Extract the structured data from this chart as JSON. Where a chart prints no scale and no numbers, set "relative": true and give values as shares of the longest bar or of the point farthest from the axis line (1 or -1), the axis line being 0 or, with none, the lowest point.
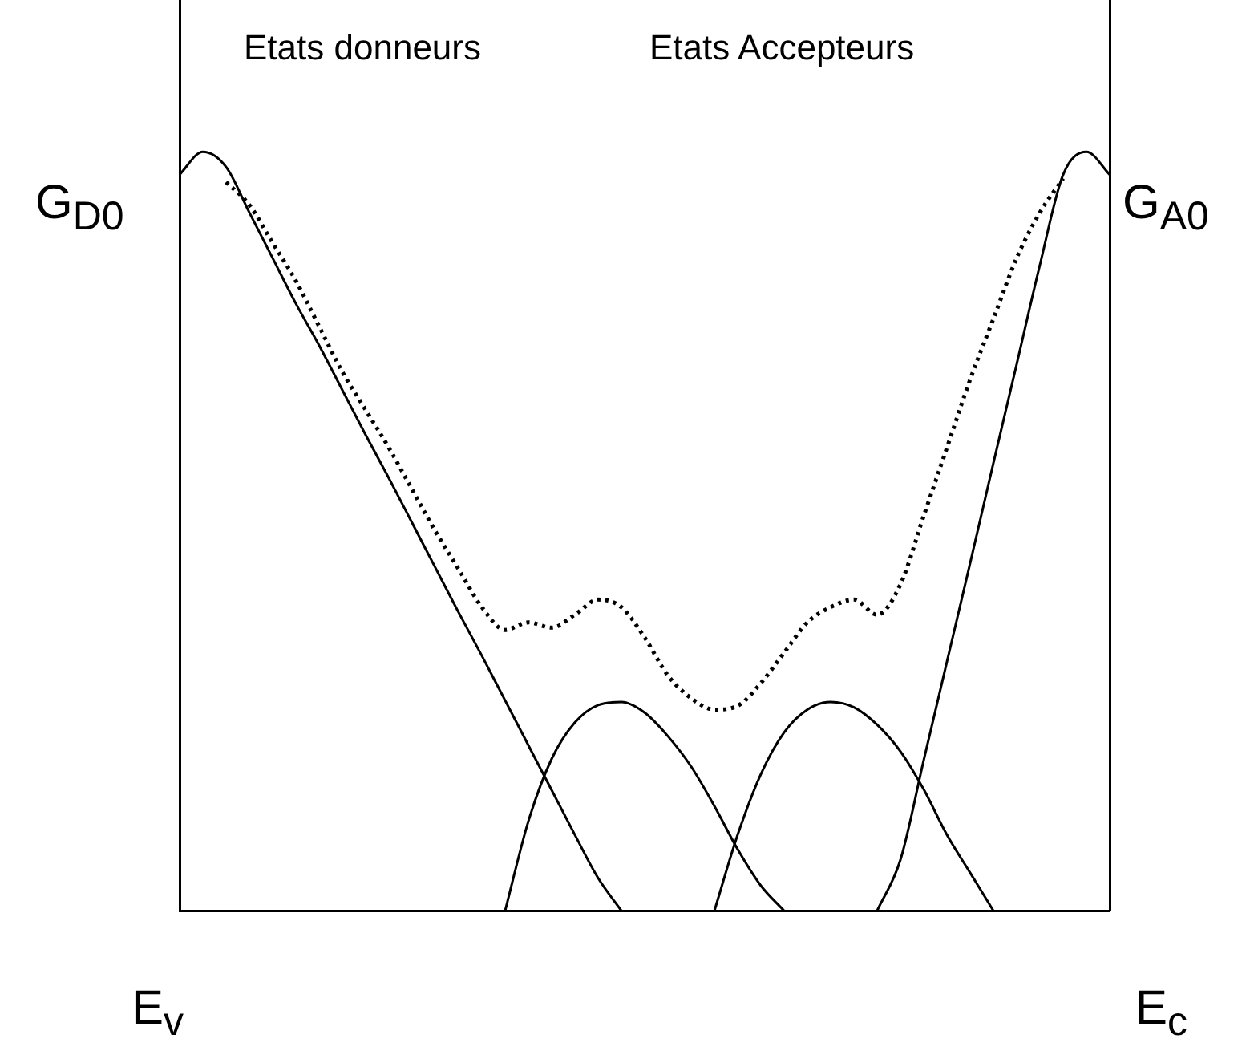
{
  "chart_data": {
    "type": "line",
    "relative": true,
    "legend": false,
    "grid": false,
    "marker": "none",
    "categories": [
      null,
      null,
      null,
      null,
      null,
      null,
      null,
      null,
      null,
      null,
      null,
      null,
      null,
      null,
      null,
      null,
      null,
      null,
      null,
      null,
      null,
      null,
      null,
      null,
      null,
      null,
      null,
      null,
      null,
      null,
      null,
      null,
      null,
      null,
      null,
      null,
      null,
      null,
      null,
      null,
      null
    ],
    "series": [
      {
        "color": "#000000",
        "line_style": "solid",
        "values": [
          0.97,
          1.0,
          0.98,
          0.92,
          0.86,
          0.8,
          0.745,
          0.686,
          0.627,
          0.57,
          0.511,
          0.452,
          0.393,
          0.336,
          0.277,
          0.218,
          0.159,
          0.1,
          0.043,
          0,
          null,
          null,
          null,
          null,
          null,
          null,
          null,
          null,
          null,
          null,
          null,
          null,
          null,
          null,
          null,
          null,
          null,
          null,
          null,
          null,
          null
        ]
      },
      {
        "color": "#000000",
        "line_style": "solid",
        "values": [
          null,
          null,
          null,
          null,
          null,
          null,
          null,
          null,
          null,
          null,
          null,
          null,
          null,
          null,
          0,
          0.118,
          0.2,
          0.248,
          0.271,
          0.275,
          0.261,
          0.23,
          0.19,
          0.138,
          0.081,
          0.033,
          0,
          null,
          null,
          null,
          null,
          null,
          null,
          null,
          null,
          null,
          null,
          null,
          null,
          null,
          null
        ]
      },
      {
        "color": "#000000",
        "line_style": "solid",
        "values": [
          null,
          null,
          null,
          null,
          null,
          null,
          null,
          null,
          null,
          null,
          null,
          null,
          null,
          null,
          null,
          null,
          null,
          null,
          null,
          null,
          null,
          null,
          null,
          0,
          0.1,
          0.18,
          0.235,
          0.265,
          0.275,
          0.268,
          0.245,
          0.21,
          0.16,
          0.1,
          0.05,
          0,
          null,
          null,
          null,
          null,
          null
        ]
      },
      {
        "color": "#000000",
        "line_style": "solid",
        "values": [
          null,
          null,
          null,
          null,
          null,
          null,
          null,
          null,
          null,
          null,
          null,
          null,
          null,
          null,
          null,
          null,
          null,
          null,
          null,
          null,
          null,
          null,
          null,
          null,
          null,
          null,
          null,
          null,
          null,
          null,
          0,
          0.067,
          0.198,
          0.328,
          0.458,
          0.59,
          0.72,
          0.851,
          0.97,
          1.0,
          0.97
        ]
      },
      {
        "color": "#000000",
        "line_style": "dotted",
        "values": [
          null,
          null,
          0.96,
          0.93,
          0.88,
          0.83,
          0.77,
          0.71,
          0.66,
          0.61,
          0.555,
          0.5,
          0.45,
          0.4,
          0.37,
          0.38,
          0.373,
          0.39,
          0.41,
          0.4,
          0.36,
          0.31,
          0.28,
          0.265,
          0.27,
          0.3,
          0.34,
          0.38,
          0.4,
          0.41,
          0.39,
          0.43,
          0.52,
          0.61,
          0.7,
          0.78,
          0.86,
          0.92,
          0.965,
          null,
          null
        ]
      }
    ],
    "annotations": [
      "Etats donneurs",
      "Etats Accepteurs",
      "G$_{D0}$",
      "G$_{A0}$",
      "E$_{v}$",
      "E$_{c}$"
    ]
  }
}
